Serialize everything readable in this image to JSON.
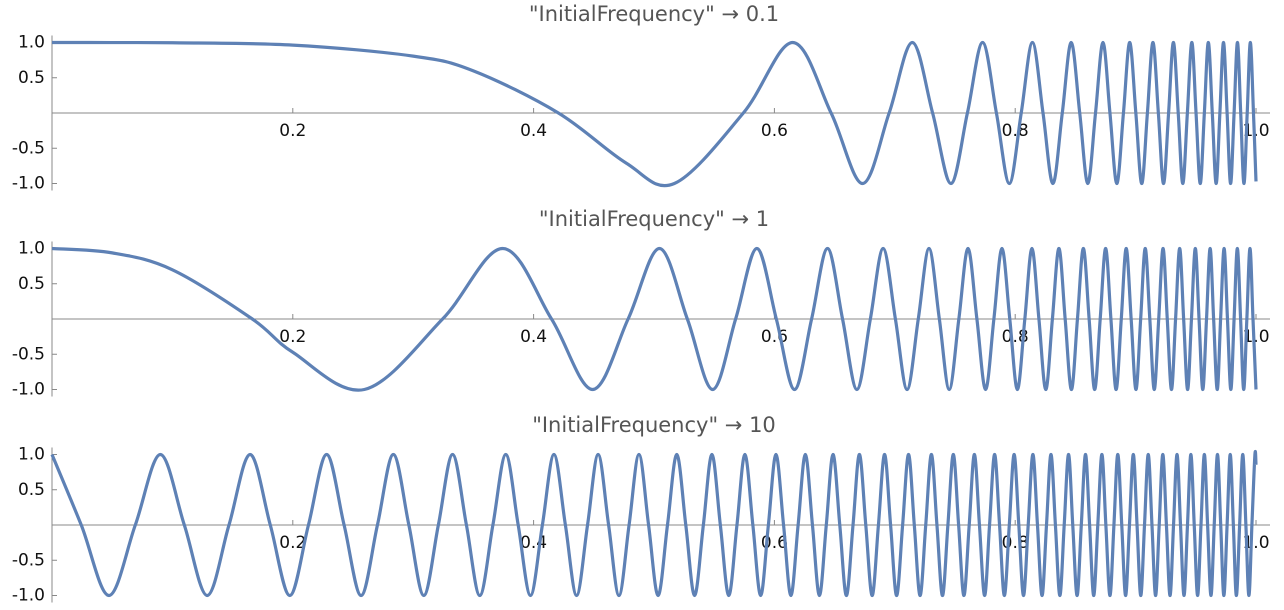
{
  "chart_data": [
    {
      "type": "line",
      "title": "\"InitialFrequency\" → 0.1",
      "color": "#5e81b5",
      "xlim": [
        0,
        1
      ],
      "ylim": [
        -1.1,
        1.1
      ],
      "xticks": [
        0.2,
        0.4,
        0.6,
        0.8,
        {
          "value": 1,
          "label": "1.0"
        }
      ],
      "yticks": [
        {
          "value": 1,
          "label": "1.0"
        },
        0.5,
        -0.5,
        {
          "value": -1,
          "label": "-1.0"
        }
      ],
      "x": [
        0,
        0.05,
        0.1,
        0.2,
        0.3,
        0.35,
        0.4206,
        0.4766,
        0.5169,
        0.5742,
        0.6152,
        0.6471,
        0.6732,
        0.6953,
        0.7145,
        0.7314,
        0.7466,
        0.7603,
        0.7729,
        0.7844,
        0.7951,
        0.805,
        0.8143,
        0.8231,
        0.8313,
        0.8391,
        0.8465,
        0.8536,
        0.8603,
        0.8667,
        0.8729,
        0.8787,
        0.8844,
        0.8899,
        0.8951,
        0.9002,
        0.9051,
        0.9098,
        0.9144,
        0.9189,
        0.9232,
        0.9274,
        0.9314,
        0.9354,
        0.9392,
        0.943,
        0.9467,
        0.9502,
        0.9537,
        0.9571,
        0.9604,
        0.9637,
        0.9669,
        0.97,
        0.973,
        0.976,
        0.9789,
        0.9818,
        0.9846,
        0.9873,
        0.99,
        0.9927,
        0.9953,
        0.9979,
        1
      ],
      "values": [
        1,
        0.999,
        0.996,
        0.963,
        0.807,
        0.598,
        0,
        -0.707,
        -1,
        0,
        1,
        0,
        -1,
        0,
        1,
        0,
        -1,
        0,
        1,
        0,
        -1,
        0,
        1,
        0,
        -1,
        0,
        1,
        0,
        -1,
        0,
        1,
        0,
        -1,
        0,
        1,
        0,
        -1,
        0,
        1,
        0,
        -1,
        0,
        1,
        0,
        -1,
        0,
        1,
        0,
        -1,
        0,
        1,
        0,
        -1,
        0,
        1,
        0,
        -1,
        0,
        1,
        0,
        -1,
        0,
        1,
        0,
        -0.971
      ]
    },
    {
      "type": "line",
      "title": "\"InitialFrequency\" → 1",
      "color": "#5e81b5",
      "xlim": [
        0,
        1
      ],
      "ylim": [
        -1.1,
        1.1
      ],
      "xticks": [
        0.2,
        0.4,
        0.6,
        0.8,
        {
          "value": 1,
          "label": "1.0"
        }
      ],
      "yticks": [
        {
          "value": 1,
          "label": "1.0"
        },
        0.5,
        -0.5,
        {
          "value": -1,
          "label": "-1.0"
        }
      ],
      "x": [
        0,
        0.05,
        0.1,
        0.1664,
        0.2,
        0.2594,
        0.3244,
        0.3743,
        0.4149,
        0.449,
        0.4785,
        0.5045,
        0.5277,
        0.5487,
        0.5678,
        0.5854,
        0.6016,
        0.6167,
        0.6309,
        0.6441,
        0.6566,
        0.6685,
        0.6797,
        0.6903,
        0.7005,
        0.7102,
        0.7195,
        0.7284,
        0.737,
        0.7452,
        0.7532,
        0.7608,
        0.7682,
        0.7754,
        0.7823,
        0.789,
        0.7955,
        0.8018,
        0.808,
        0.8139,
        0.8197,
        0.8254,
        0.8309,
        0.8363,
        0.8415,
        0.8467,
        0.8517,
        0.8566,
        0.8614,
        0.866,
        0.8706,
        0.8751,
        0.8795,
        0.8838,
        0.8881,
        0.8922,
        0.8963,
        0.9003,
        0.9042,
        0.908,
        0.9118,
        0.9155,
        0.9192,
        0.9228,
        0.9263,
        0.9298,
        0.9332,
        0.9366,
        0.9399,
        0.9432,
        0.9464,
        0.9496,
        0.9527,
        0.9558,
        0.9589,
        0.9619,
        0.9648,
        0.9678,
        0.9706,
        0.9735,
        0.9763,
        0.9791,
        0.9818,
        0.9845,
        0.9872,
        0.9898,
        0.9924,
        0.995,
        0.9975,
        1
      ],
      "values": [
        1,
        0.938,
        0.698,
        0,
        -0.472,
        -1,
        0,
        1,
        0,
        -1,
        0,
        1,
        0,
        -1,
        0,
        1,
        0,
        -1,
        0,
        1,
        0,
        -1,
        0,
        1,
        0,
        -1,
        0,
        1,
        0,
        -1,
        0,
        1,
        0,
        -1,
        0,
        1,
        0,
        -1,
        0,
        1,
        0,
        -1,
        0,
        1,
        0,
        -1,
        0,
        1,
        0,
        -1,
        0,
        1,
        0,
        -1,
        0,
        1,
        0,
        -1,
        0,
        1,
        0,
        -1,
        0,
        1,
        0,
        -1,
        0,
        1,
        0,
        -1,
        0,
        1,
        0,
        -1,
        0,
        1,
        0,
        -1,
        0,
        1,
        0,
        -1,
        0,
        1,
        0,
        -1,
        0,
        1,
        0,
        -1
      ]
    },
    {
      "type": "line",
      "title": "\"InitialFrequency\" → 10",
      "color": "#5e81b5",
      "xlim": [
        0,
        1
      ],
      "ylim": [
        -1.1,
        1.1
      ],
      "xticks": [
        0.2,
        0.4,
        0.6,
        0.8,
        {
          "value": 1,
          "label": "1.0"
        }
      ],
      "yticks": [
        {
          "value": 1,
          "label": "1.0"
        },
        0.5,
        -0.5,
        {
          "value": -1,
          "label": "-1.0"
        }
      ],
      "x": [
        0,
        0.0243,
        0.0473,
        0.0692,
        0.09,
        0.1099,
        0.1289,
        0.147,
        0.1645,
        0.1813,
        0.1975,
        0.213,
        0.2281,
        0.2426,
        0.2567,
        0.2703,
        0.2835,
        0.2964,
        0.3088,
        0.3209,
        0.3327,
        0.3442,
        0.3553,
        0.3662,
        0.3769,
        0.3872,
        0.3974,
        0.4073,
        0.4169,
        0.4264,
        0.4357,
        0.4448,
        0.4536,
        0.4623,
        0.4709,
        0.4793,
        0.4875,
        0.4955,
        0.5034,
        0.5112,
        0.5189,
        0.5264,
        0.5337,
        0.541,
        0.5481,
        0.5551,
        0.5621,
        0.5689,
        0.5755,
        0.5821,
        0.5886,
        0.595,
        0.6013,
        0.6076,
        0.6137,
        0.6197,
        0.6257,
        0.6316,
        0.6374,
        0.6431,
        0.6487,
        0.6543,
        0.6598,
        0.6653,
        0.6706,
        0.6759,
        0.6812,
        0.6864,
        0.6915,
        0.6965,
        0.7015,
        0.7065,
        0.7114,
        0.7162,
        0.721,
        0.7257,
        0.7304,
        0.735,
        0.7396,
        0.7441,
        0.7486,
        0.753,
        0.7574,
        0.7618,
        0.7661,
        0.7703,
        0.7746,
        0.7787,
        0.7829,
        0.787,
        0.791,
        0.7951,
        0.7991,
        0.803,
        0.8069,
        0.8108,
        0.8147,
        0.8185,
        0.8223,
        0.826,
        0.8297,
        0.8334,
        0.8371,
        0.8407,
        0.8443,
        0.8478,
        0.8514,
        0.8549,
        0.8584,
        0.8618,
        0.8652,
        0.8686,
        0.872,
        0.8753,
        0.8787,
        0.882,
        0.8852,
        0.8885,
        0.8917,
        0.8949,
        0.8981,
        0.9012,
        0.9043,
        0.9074,
        0.9105,
        0.9136,
        0.9166,
        0.9196,
        0.9226,
        0.9256,
        0.9286,
        0.9315,
        0.9344,
        0.9373,
        0.9402,
        0.9431,
        0.9459,
        0.9487,
        0.9515,
        0.9543,
        0.9571,
        0.9598,
        0.9626,
        0.9653,
        0.968,
        0.9707,
        0.9733,
        0.976,
        0.9786,
        0.9812,
        0.9837,
        0.9864,
        0.989,
        0.9916,
        0.9941,
        0.9966,
        0.9991,
        1
      ],
      "values": [
        1,
        0,
        -1,
        0,
        1,
        0,
        -1,
        0,
        1,
        0,
        -1,
        0,
        1,
        0,
        -1,
        0,
        1,
        0,
        -1,
        0,
        1,
        0,
        -1,
        0,
        1,
        0,
        -1,
        0,
        1,
        0,
        -1,
        0,
        1,
        0,
        -1,
        0,
        1,
        0,
        -1,
        0,
        1,
        0,
        -1,
        0,
        1,
        0,
        -1,
        0,
        1,
        0,
        -1,
        0,
        1,
        0,
        -1,
        0,
        1,
        0,
        -1,
        0,
        1,
        0,
        -1,
        0,
        1,
        0,
        -1,
        0,
        1,
        0,
        -1,
        0,
        1,
        0,
        -1,
        0,
        1,
        0,
        -1,
        0,
        1,
        0,
        -1,
        0,
        1,
        0,
        -1,
        0,
        1,
        0,
        -1,
        0,
        1,
        0,
        -1,
        0,
        1,
        0,
        -1,
        0,
        1,
        0,
        -1,
        0,
        1,
        0,
        -1,
        0,
        1,
        0,
        -1,
        0,
        1,
        0,
        -1,
        0,
        1,
        0,
        -1,
        0,
        1,
        0,
        -1,
        0,
        1,
        0,
        -1,
        0,
        1,
        0,
        -1,
        0,
        1,
        0,
        -1,
        0,
        1,
        0,
        -1,
        0,
        1,
        0,
        -1,
        0,
        1,
        0,
        -1,
        0,
        1,
        0,
        -1,
        0,
        1,
        0,
        -1,
        0,
        1,
        0.854
      ]
    }
  ]
}
